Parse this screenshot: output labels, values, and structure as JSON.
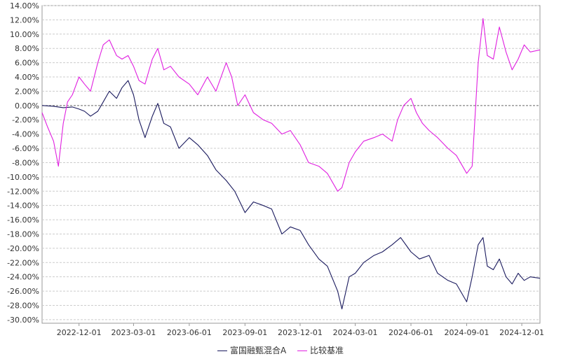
{
  "chart_data": {
    "type": "line",
    "title": "",
    "xlabel": "",
    "ylabel": "",
    "x_range": [
      "2022-10-01",
      "2024-12-31"
    ],
    "x_ticks": [
      "2022-12-01",
      "2023-03-01",
      "2023-06-01",
      "2023-09-01",
      "2023-12-01",
      "2024-03-01",
      "2024-06-01",
      "2024-09-01",
      "2024-12-01"
    ],
    "ylim": [
      -30.5,
      14
    ],
    "y_ticks": [
      14,
      12,
      10,
      8,
      6,
      4,
      2,
      0,
      -2,
      -4,
      -6,
      -8,
      -10,
      -12,
      -14,
      -16,
      -18,
      -20,
      -22,
      -24,
      -26,
      -28,
      -30
    ],
    "y_tick_labels": [
      "14.00%",
      "12.00%",
      "10.00%",
      "8.00%",
      "6.00%",
      "4.00%",
      "2.00%",
      "0.00%",
      "-2.00%",
      "-4.00%",
      "-6.00%",
      "-8.00%",
      "-10.00%",
      "-12.00%",
      "-14.00%",
      "-16.00%",
      "-18.00%",
      "-20.00%",
      "-22.00%",
      "-24.00%",
      "-26.00%",
      "-28.00%",
      "-30.00%"
    ],
    "y_unit": "%",
    "grid": "horizontal dashed",
    "zero_line": "dashed",
    "legend_position": "bottom",
    "series": [
      {
        "name": "富国融甄混合A",
        "color": "#1a1a5e",
        "points": [
          [
            "2022-10-01",
            0
          ],
          [
            "2022-10-20",
            -0.1
          ],
          [
            "2022-11-05",
            -0.3
          ],
          [
            "2022-11-20",
            -0.2
          ],
          [
            "2022-12-01",
            -0.5
          ],
          [
            "2022-12-10",
            -0.8
          ],
          [
            "2022-12-20",
            -1.5
          ],
          [
            "2023-01-01",
            -0.8
          ],
          [
            "2023-01-10",
            0.5
          ],
          [
            "2023-01-20",
            2.0
          ],
          [
            "2023-02-01",
            1.0
          ],
          [
            "2023-02-10",
            2.5
          ],
          [
            "2023-02-20",
            3.5
          ],
          [
            "2023-03-01",
            1.5
          ],
          [
            "2023-03-10",
            -2.0
          ],
          [
            "2023-03-20",
            -4.5
          ],
          [
            "2023-04-01",
            -1.5
          ],
          [
            "2023-04-10",
            0.3
          ],
          [
            "2023-04-20",
            -2.5
          ],
          [
            "2023-05-01",
            -3.0
          ],
          [
            "2023-05-15",
            -6.0
          ],
          [
            "2023-06-01",
            -4.5
          ],
          [
            "2023-06-15",
            -5.5
          ],
          [
            "2023-07-01",
            -7.0
          ],
          [
            "2023-07-15",
            -9.0
          ],
          [
            "2023-08-01",
            -10.5
          ],
          [
            "2023-08-15",
            -12.0
          ],
          [
            "2023-09-01",
            -15.0
          ],
          [
            "2023-09-15",
            -13.5
          ],
          [
            "2023-10-01",
            -14.0
          ],
          [
            "2023-10-15",
            -14.5
          ],
          [
            "2023-11-01",
            -18.0
          ],
          [
            "2023-11-15",
            -17.0
          ],
          [
            "2023-12-01",
            -17.5
          ],
          [
            "2023-12-15",
            -19.5
          ],
          [
            "2024-01-01",
            -21.5
          ],
          [
            "2024-01-15",
            -22.5
          ],
          [
            "2024-02-01",
            -26.0
          ],
          [
            "2024-02-08",
            -28.5
          ],
          [
            "2024-02-20",
            -24.0
          ],
          [
            "2024-03-01",
            -23.5
          ],
          [
            "2024-03-15",
            -22.0
          ],
          [
            "2024-04-01",
            -21.0
          ],
          [
            "2024-04-15",
            -20.5
          ],
          [
            "2024-05-01",
            -19.5
          ],
          [
            "2024-05-15",
            -18.5
          ],
          [
            "2024-06-01",
            -20.5
          ],
          [
            "2024-06-15",
            -21.5
          ],
          [
            "2024-07-01",
            -21.0
          ],
          [
            "2024-07-15",
            -23.5
          ],
          [
            "2024-08-01",
            -24.5
          ],
          [
            "2024-08-15",
            -25.0
          ],
          [
            "2024-09-01",
            -27.5
          ],
          [
            "2024-09-10",
            -24.0
          ],
          [
            "2024-09-20",
            -19.5
          ],
          [
            "2024-09-28",
            -18.5
          ],
          [
            "2024-10-05",
            -22.5
          ],
          [
            "2024-10-15",
            -23.0
          ],
          [
            "2024-10-25",
            -21.5
          ],
          [
            "2024-11-05",
            -24.0
          ],
          [
            "2024-11-15",
            -25.0
          ],
          [
            "2024-11-25",
            -23.5
          ],
          [
            "2024-12-05",
            -24.5
          ],
          [
            "2024-12-15",
            -24.0
          ],
          [
            "2024-12-31",
            -24.2
          ]
        ]
      },
      {
        "name": "比较基准",
        "color": "#e020e0",
        "points": [
          [
            "2022-10-01",
            -1.0
          ],
          [
            "2022-10-10",
            -3.0
          ],
          [
            "2022-10-20",
            -5.0
          ],
          [
            "2022-10-28",
            -8.5
          ],
          [
            "2022-11-05",
            -2.5
          ],
          [
            "2022-11-12",
            0.5
          ],
          [
            "2022-11-20",
            1.5
          ],
          [
            "2022-12-01",
            4.0
          ],
          [
            "2022-12-10",
            3.0
          ],
          [
            "2022-12-20",
            2.0
          ],
          [
            "2023-01-01",
            6.0
          ],
          [
            "2023-01-10",
            8.5
          ],
          [
            "2023-01-20",
            9.2
          ],
          [
            "2023-02-01",
            7.0
          ],
          [
            "2023-02-10",
            6.5
          ],
          [
            "2023-02-20",
            7.0
          ],
          [
            "2023-03-01",
            5.5
          ],
          [
            "2023-03-10",
            3.5
          ],
          [
            "2023-03-20",
            3.0
          ],
          [
            "2023-04-01",
            6.5
          ],
          [
            "2023-04-10",
            8.0
          ],
          [
            "2023-04-20",
            5.0
          ],
          [
            "2023-05-01",
            5.5
          ],
          [
            "2023-05-15",
            4.0
          ],
          [
            "2023-06-01",
            3.0
          ],
          [
            "2023-06-15",
            1.5
          ],
          [
            "2023-07-01",
            4.0
          ],
          [
            "2023-07-15",
            2.0
          ],
          [
            "2023-08-01",
            6.0
          ],
          [
            "2023-08-10",
            4.0
          ],
          [
            "2023-08-20",
            0.0
          ],
          [
            "2023-09-01",
            1.5
          ],
          [
            "2023-09-15",
            -1.0
          ],
          [
            "2023-10-01",
            -2.0
          ],
          [
            "2023-10-15",
            -2.5
          ],
          [
            "2023-11-01",
            -4.0
          ],
          [
            "2023-11-15",
            -3.5
          ],
          [
            "2023-12-01",
            -5.5
          ],
          [
            "2023-12-15",
            -8.0
          ],
          [
            "2024-01-01",
            -8.5
          ],
          [
            "2024-01-15",
            -9.5
          ],
          [
            "2024-02-01",
            -12.0
          ],
          [
            "2024-02-08",
            -11.5
          ],
          [
            "2024-02-20",
            -8.0
          ],
          [
            "2024-03-01",
            -6.5
          ],
          [
            "2024-03-15",
            -5.0
          ],
          [
            "2024-04-01",
            -4.5
          ],
          [
            "2024-04-15",
            -4.0
          ],
          [
            "2024-05-01",
            -5.0
          ],
          [
            "2024-05-10",
            -2.0
          ],
          [
            "2024-05-20",
            0.0
          ],
          [
            "2024-06-01",
            1.0
          ],
          [
            "2024-06-10",
            -1.0
          ],
          [
            "2024-06-20",
            -2.5
          ],
          [
            "2024-07-01",
            -3.5
          ],
          [
            "2024-07-15",
            -4.5
          ],
          [
            "2024-08-01",
            -6.0
          ],
          [
            "2024-08-15",
            -7.0
          ],
          [
            "2024-09-01",
            -9.5
          ],
          [
            "2024-09-10",
            -8.5
          ],
          [
            "2024-09-20",
            6.0
          ],
          [
            "2024-09-28",
            12.2
          ],
          [
            "2024-10-05",
            7.0
          ],
          [
            "2024-10-15",
            6.5
          ],
          [
            "2024-10-25",
            11.0
          ],
          [
            "2024-11-05",
            7.5
          ],
          [
            "2024-11-15",
            5.0
          ],
          [
            "2024-11-25",
            6.5
          ],
          [
            "2024-12-05",
            8.5
          ],
          [
            "2024-12-15",
            7.5
          ],
          [
            "2024-12-31",
            7.8
          ]
        ]
      }
    ]
  }
}
